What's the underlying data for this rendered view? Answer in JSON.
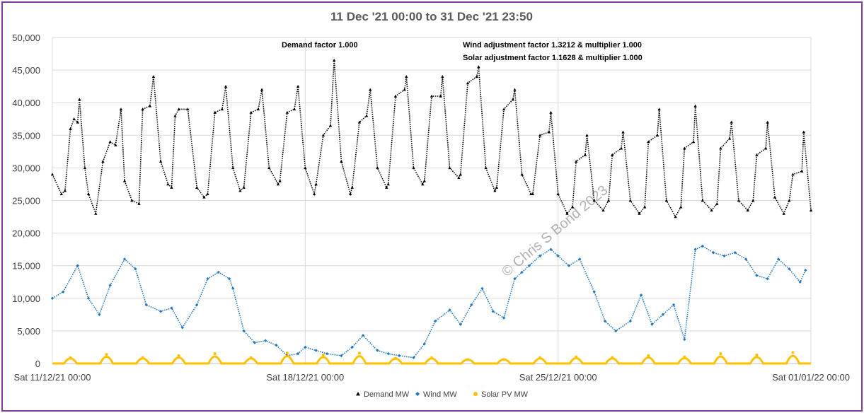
{
  "chart_data": {
    "type": "scatter",
    "title": "11 Dec '21 00:00 to 31 Dec '21 23:50",
    "ylim": [
      0,
      50000
    ],
    "yticks": [
      "0",
      "5,000",
      "10,000",
      "15,000",
      "20,000",
      "25,000",
      "30,000",
      "35,000",
      "40,000",
      "45,000",
      "50,000"
    ],
    "xticks": [
      {
        "day": 0,
        "label": "Sat 11/12/21 00:00"
      },
      {
        "day": 7,
        "label": "Sat 18/12/21 00:00"
      },
      {
        "day": 14,
        "label": "Sat 25/12/21 00:00"
      },
      {
        "day": 21,
        "label": "Sat 01/01/22 00:00"
      }
    ],
    "grid": true,
    "legend_position": "bottom",
    "annotations": {
      "demand_factor": "Demand factor 1.000",
      "wind_factor": "Wind adjustment factor 1.3212 & multiplier 1.000",
      "solar_factor": "Solar adjustment factor 1.1628 & multiplier 1.000"
    },
    "watermark": "© Chris S Bond  2023",
    "series": [
      {
        "name": "Demand MW",
        "color": "#000000",
        "marker": "triangle",
        "x": [
          0.0,
          0.25,
          0.35,
          0.5,
          0.6,
          0.7,
          0.75,
          0.9,
          1.0,
          1.2,
          1.4,
          1.6,
          1.75,
          1.9,
          2.0,
          2.2,
          2.4,
          2.5,
          2.7,
          2.8,
          3.0,
          3.2,
          3.3,
          3.4,
          3.5,
          3.75,
          4.0,
          4.2,
          4.3,
          4.5,
          4.7,
          4.8,
          5.0,
          5.2,
          5.3,
          5.5,
          5.7,
          5.8,
          6.0,
          6.25,
          6.3,
          6.5,
          6.7,
          6.8,
          7.0,
          7.25,
          7.3,
          7.5,
          7.7,
          7.8,
          8.0,
          8.25,
          8.3,
          8.5,
          8.7,
          8.8,
          9.0,
          9.25,
          9.3,
          9.5,
          9.75,
          9.8,
          10.0,
          10.25,
          10.3,
          10.5,
          10.75,
          10.8,
          11.0,
          11.25,
          11.3,
          11.5,
          11.75,
          11.8,
          12.0,
          12.25,
          12.3,
          12.5,
          12.75,
          12.8,
          13.0,
          13.25,
          13.3,
          13.5,
          13.75,
          13.8,
          14.0,
          14.25,
          14.4,
          14.5,
          14.75,
          14.8,
          15.0,
          15.25,
          15.4,
          15.5,
          15.75,
          15.8,
          16.0,
          16.25,
          16.4,
          16.5,
          16.75,
          16.8,
          17.0,
          17.25,
          17.4,
          17.5,
          17.75,
          17.8,
          18.0,
          18.25,
          18.4,
          18.5,
          18.75,
          18.8,
          19.0,
          19.25,
          19.4,
          19.5,
          19.75,
          19.8,
          20.0,
          20.25,
          20.4,
          20.5,
          20.75,
          20.8,
          21.0
        ],
        "y": [
          29000,
          26000,
          26500,
          36000,
          37500,
          37000,
          40500,
          30000,
          26000,
          23000,
          31000,
          34000,
          33500,
          39000,
          28000,
          25000,
          24500,
          39000,
          39500,
          44000,
          31000,
          27500,
          27000,
          38000,
          39000,
          39000,
          27000,
          25500,
          26000,
          38500,
          39000,
          42500,
          30000,
          26500,
          27000,
          38500,
          39000,
          42000,
          30000,
          27500,
          28000,
          38500,
          39000,
          42500,
          30000,
          26000,
          27500,
          35000,
          36500,
          46500,
          31000,
          26000,
          27000,
          37000,
          38000,
          42000,
          30000,
          27000,
          27500,
          41000,
          42000,
          44000,
          30000,
          27500,
          28000,
          41000,
          41000,
          44000,
          30000,
          28500,
          29000,
          43000,
          44000,
          45500,
          30000,
          26500,
          27000,
          39000,
          40500,
          42000,
          29000,
          26000,
          26000,
          35000,
          35500,
          38500,
          26000,
          23000,
          24000,
          31000,
          32000,
          35000,
          25000,
          23500,
          25000,
          32000,
          33000,
          35500,
          25000,
          23000,
          24000,
          34000,
          35000,
          39000,
          25000,
          22500,
          24000,
          33000,
          34000,
          39500,
          25000,
          23500,
          24500,
          33000,
          34500,
          37000,
          25000,
          23500,
          25000,
          32000,
          33000,
          37000,
          25500,
          23000,
          25000,
          29000,
          29500,
          35500,
          23500
        ]
      },
      {
        "name": "Wind MW",
        "color": "#1f77c3",
        "marker": "diamond",
        "x": [
          0.0,
          0.3,
          0.7,
          1.0,
          1.3,
          1.6,
          2.0,
          2.3,
          2.6,
          3.0,
          3.3,
          3.6,
          4.0,
          4.3,
          4.6,
          4.9,
          5.0,
          5.3,
          5.6,
          5.9,
          6.2,
          6.5,
          6.8,
          7.0,
          7.3,
          7.6,
          8.0,
          8.3,
          8.6,
          9.0,
          9.3,
          9.6,
          10.0,
          10.3,
          10.6,
          11.0,
          11.3,
          11.6,
          11.9,
          12.2,
          12.5,
          12.8,
          13.0,
          13.2,
          13.5,
          13.8,
          14.0,
          14.3,
          14.6,
          15.0,
          15.3,
          15.6,
          16.0,
          16.3,
          16.6,
          16.9,
          17.2,
          17.5,
          17.8,
          18.0,
          18.3,
          18.6,
          18.9,
          19.2,
          19.5,
          19.8,
          20.1,
          20.4,
          20.7,
          20.85
        ],
        "y": [
          10000,
          11000,
          15000,
          10000,
          7500,
          12000,
          16000,
          14500,
          9000,
          8000,
          8500,
          5500,
          9000,
          13000,
          14000,
          13000,
          11500,
          5000,
          3200,
          3500,
          2800,
          1200,
          1500,
          2500,
          2000,
          1500,
          1200,
          2500,
          4300,
          2000,
          1500,
          1200,
          900,
          3000,
          6500,
          8200,
          6000,
          9000,
          11500,
          8000,
          7000,
          13000,
          14000,
          15000,
          16500,
          17500,
          16500,
          15000,
          16000,
          11000,
          6500,
          5000,
          6500,
          10500,
          6000,
          7500,
          9000,
          3700,
          17500,
          18000,
          17000,
          16500,
          17000,
          16000,
          13500,
          13000,
          16000,
          14500,
          12500,
          14300
        ]
      },
      {
        "name": "Solar PV MW",
        "color": "#ffc000",
        "marker": "circle",
        "x": [
          0.5,
          1.5,
          2.5,
          3.5,
          4.5,
          5.5,
          6.5,
          7.5,
          8.5,
          9.5,
          10.5,
          11.5,
          12.5,
          13.5,
          14.5,
          15.5,
          16.5,
          17.5,
          18.5,
          19.5,
          20.5
        ],
        "y": [
          900,
          1400,
          900,
          1200,
          1500,
          900,
          1600,
          1300,
          1600,
          800,
          900,
          600,
          600,
          900,
          1000,
          900,
          1200,
          1000,
          1500,
          1300,
          1700
        ]
      }
    ]
  }
}
